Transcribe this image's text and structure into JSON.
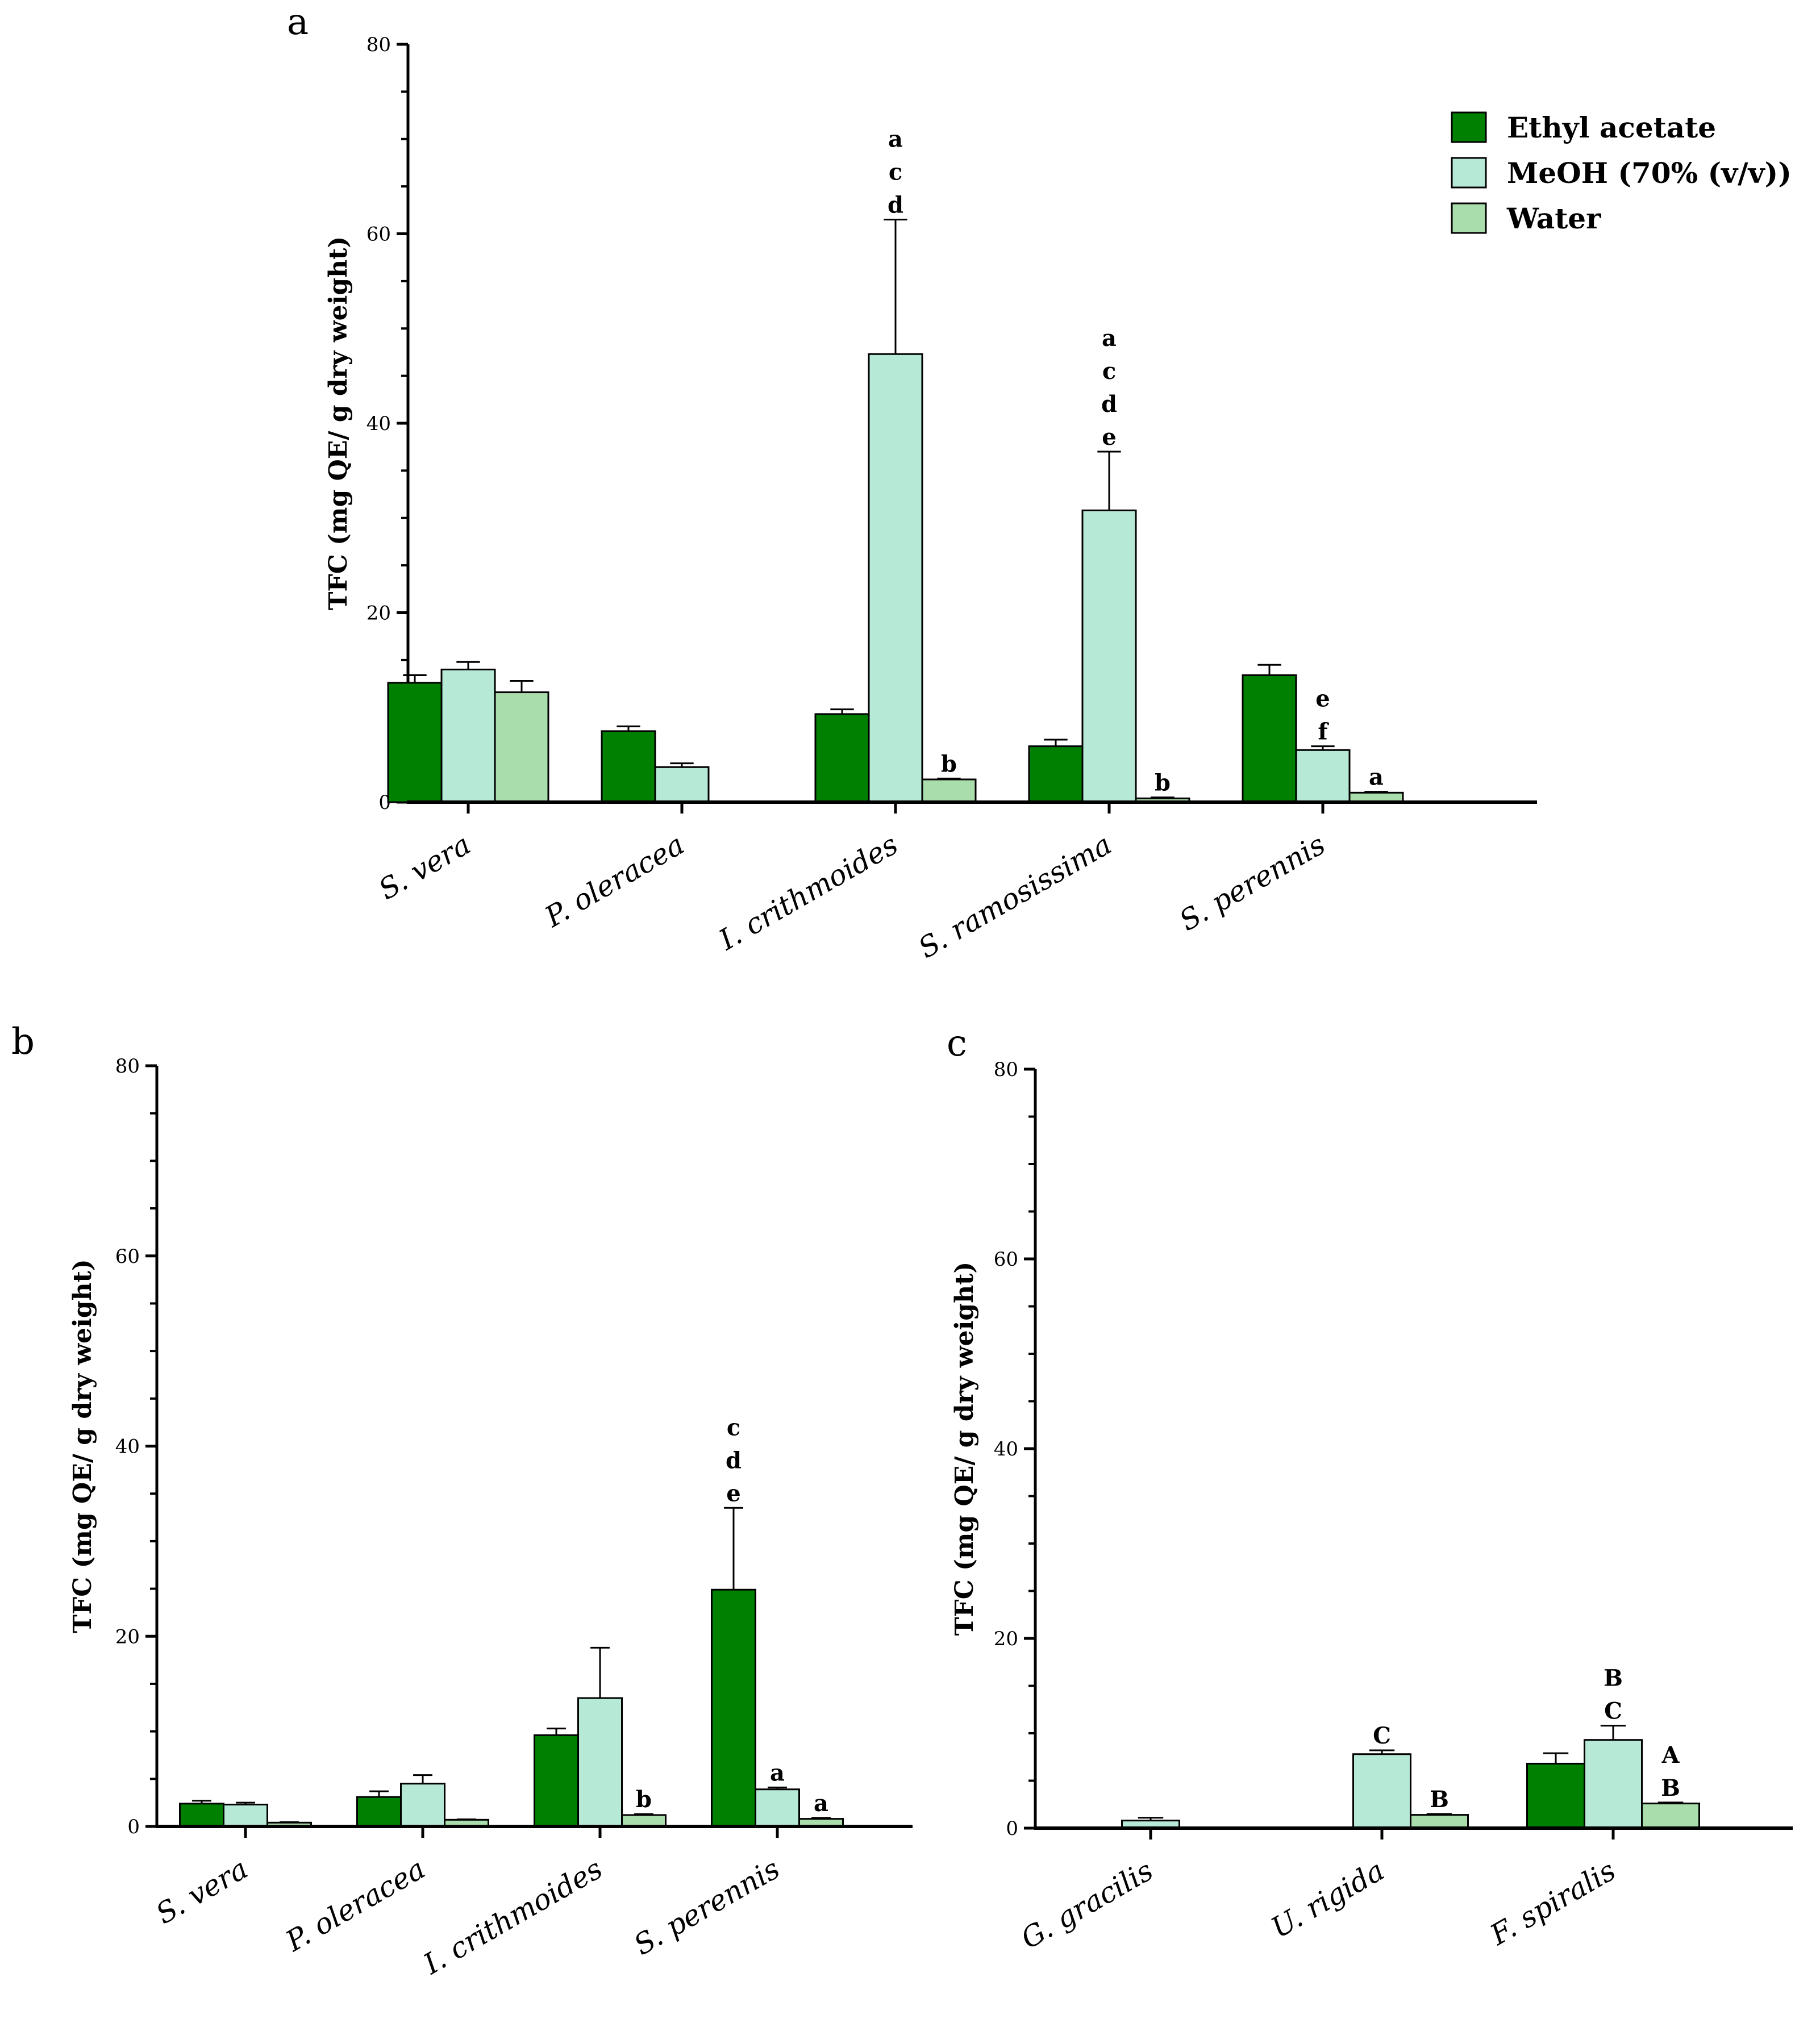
{
  "legend": {
    "items": [
      {
        "label": "Ethyl acetate",
        "color": "#008000"
      },
      {
        "label": "MeOH (70% (v/v))",
        "color": "#b6ead6"
      },
      {
        "label": "Water",
        "color": "#a9ddab"
      }
    ]
  },
  "chart_data": [
    {
      "panel": "a",
      "type": "bar",
      "ylabel": "TFC (mg QE/ g dry weight)",
      "ylim": [
        0,
        80
      ],
      "yticks": [
        "0",
        "20",
        "40",
        "60",
        "80"
      ],
      "categories": [
        "S. vera",
        "P. oleracea",
        "I. crithmoides",
        "S. ramosissima",
        "S. perennis"
      ],
      "series": [
        {
          "name": "Ethyl acetate",
          "values": [
            12.6,
            7.5,
            9.3,
            5.9,
            13.4
          ],
          "errors": [
            0.8,
            0.5,
            0.5,
            0.7,
            1.1
          ],
          "labels": [
            "",
            "",
            "",
            "",
            ""
          ]
        },
        {
          "name": "MeOH (70% (v/v))",
          "values": [
            14.0,
            3.7,
            47.3,
            30.8,
            5.5
          ],
          "errors": [
            0.8,
            0.4,
            14.2,
            6.2,
            0.4
          ],
          "labels": [
            "",
            "",
            "a\nc\nd",
            "a\nc\nd\ne",
            "e\nf"
          ]
        },
        {
          "name": "Water",
          "values": [
            11.6,
            null,
            2.4,
            0.4,
            1.0
          ],
          "errors": [
            1.2,
            null,
            0.1,
            0.1,
            0.1
          ],
          "labels": [
            "",
            "",
            "b",
            "b",
            "a"
          ]
        }
      ]
    },
    {
      "panel": "b",
      "type": "bar",
      "ylabel": "TFC (mg QE/ g dry weight)",
      "ylim": [
        0,
        80
      ],
      "yticks": [
        "0",
        "20",
        "40",
        "60",
        "80"
      ],
      "categories": [
        "S. vera",
        "P. oleracea",
        "I. crithmoides",
        "S. perennis"
      ],
      "series": [
        {
          "name": "Ethyl acetate",
          "values": [
            2.4,
            3.1,
            9.6,
            24.9
          ],
          "errors": [
            0.3,
            0.6,
            0.7,
            8.6
          ],
          "labels": [
            "",
            "",
            "",
            "c\nd\ne"
          ]
        },
        {
          "name": "MeOH (70% (v/v))",
          "values": [
            2.3,
            4.5,
            13.5,
            3.9
          ],
          "errors": [
            0.2,
            0.9,
            5.3,
            0.2
          ],
          "labels": [
            "",
            "",
            "",
            "a"
          ]
        },
        {
          "name": "Water",
          "values": [
            0.4,
            0.7,
            1.2,
            0.8
          ],
          "errors": [
            0.05,
            0.05,
            0.1,
            0.1
          ],
          "labels": [
            "",
            "",
            "b",
            "a"
          ]
        }
      ]
    },
    {
      "panel": "c",
      "type": "bar",
      "ylabel": "TFC (mg QE/ g dry weight)",
      "ylim": [
        0,
        80
      ],
      "yticks": [
        "0",
        "20",
        "40",
        "60",
        "80"
      ],
      "categories": [
        "G. gracilis",
        "U. rigida",
        "F. spiralis"
      ],
      "series": [
        {
          "name": "Ethyl acetate",
          "values": [
            null,
            null,
            6.8
          ],
          "errors": [
            null,
            null,
            1.1
          ],
          "labels": [
            "",
            "",
            ""
          ]
        },
        {
          "name": "MeOH (70% (v/v))",
          "values": [
            0.8,
            7.8,
            9.3
          ],
          "errors": [
            0.3,
            0.4,
            1.5
          ],
          "labels": [
            "",
            "C",
            "B\nC"
          ]
        },
        {
          "name": "Water",
          "values": [
            null,
            1.4,
            2.6
          ],
          "errors": [
            null,
            0.1,
            0.1
          ],
          "labels": [
            "",
            "B",
            "A\nB"
          ]
        }
      ]
    }
  ]
}
